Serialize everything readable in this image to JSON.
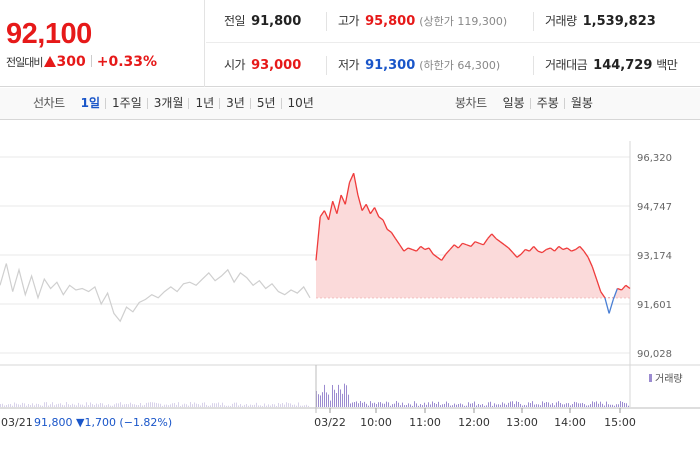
{
  "summary": {
    "price": "92,100",
    "change_label": "전일대비",
    "change_value": "300",
    "change_pct": "+0.33%"
  },
  "stats": {
    "prev_close": {
      "label": "전일",
      "value": "91,800"
    },
    "high": {
      "label": "고가",
      "value": "95,800",
      "sub": "(상한가 119,300)"
    },
    "volume": {
      "label": "거래량",
      "value": "1,539,823"
    },
    "open": {
      "label": "시가",
      "value": "93,000"
    },
    "low": {
      "label": "저가",
      "value": "91,300",
      "sub": "(하한가 64,300)"
    },
    "trade_amount": {
      "label": "거래대금",
      "value": "144,729",
      "unit": "백만"
    }
  },
  "line_tabs": {
    "label": "선차트",
    "items": [
      "1일",
      "1주일",
      "3개월",
      "1년",
      "3년",
      "5년",
      "10년"
    ],
    "active": "1일"
  },
  "candle_tabs": {
    "label": "봉차트",
    "items": [
      "일봉",
      "주봉",
      "월봉"
    ]
  },
  "chart_data": {
    "type": "area",
    "y_ticks": [
      "96,320",
      "94,747",
      "93,174",
      "91,601",
      "90,028"
    ],
    "ylim": [
      90028,
      96320
    ],
    "baseline": 91800,
    "x_ticks": [
      "03/22",
      "10:00",
      "11:00",
      "12:00",
      "13:00",
      "14:00",
      "15:00"
    ],
    "prev_day_label": "03/21",
    "prev_day_summary": "91,800 ▼1,700 (−1.82%)",
    "volume_legend": "거래량",
    "colors": {
      "up_line": "#ef3b3b",
      "up_fill": "#fbdada",
      "down_line": "#4a7fd4",
      "prev_line": "#cfcfcf",
      "volume": "#9b8bd0",
      "grid": "#e9e9e9"
    },
    "prev_day_series": [
      92200,
      92900,
      92000,
      92700,
      91900,
      92500,
      91800,
      92400,
      92100,
      92300,
      91900,
      92200,
      92050,
      92100,
      92000,
      92150,
      91600,
      91950,
      91300,
      91050,
      91500,
      91350,
      91650,
      91750,
      91900,
      91800,
      92000,
      92150,
      92000,
      92250,
      92300,
      92200,
      92400,
      92600,
      92350,
      92500,
      92700,
      92300,
      92600,
      92450,
      92200,
      92350,
      92100,
      92250,
      92000,
      91900,
      92050,
      91950,
      92150,
      91800
    ],
    "today_series": [
      93000,
      94400,
      94600,
      94300,
      94900,
      94500,
      95100,
      94800,
      95500,
      95800,
      95100,
      94600,
      94800,
      94500,
      94700,
      94400,
      94300,
      94000,
      93900,
      93700,
      93500,
      93300,
      93400,
      93350,
      93300,
      93450,
      93350,
      93400,
      93200,
      93100,
      93000,
      93200,
      93350,
      93500,
      93400,
      93550,
      93500,
      93450,
      93600,
      93550,
      93500,
      93700,
      93850,
      93700,
      93600,
      93500,
      93400,
      93250,
      93100,
      93200,
      93350,
      93300,
      93450,
      93300,
      93250,
      93350,
      93400,
      93300,
      93450,
      93350,
      93400,
      93300,
      93350,
      93450,
      93300,
      93100,
      92800,
      92400,
      92000,
      91800,
      91300,
      91750,
      92100,
      92050,
      92200,
      92100
    ]
  }
}
